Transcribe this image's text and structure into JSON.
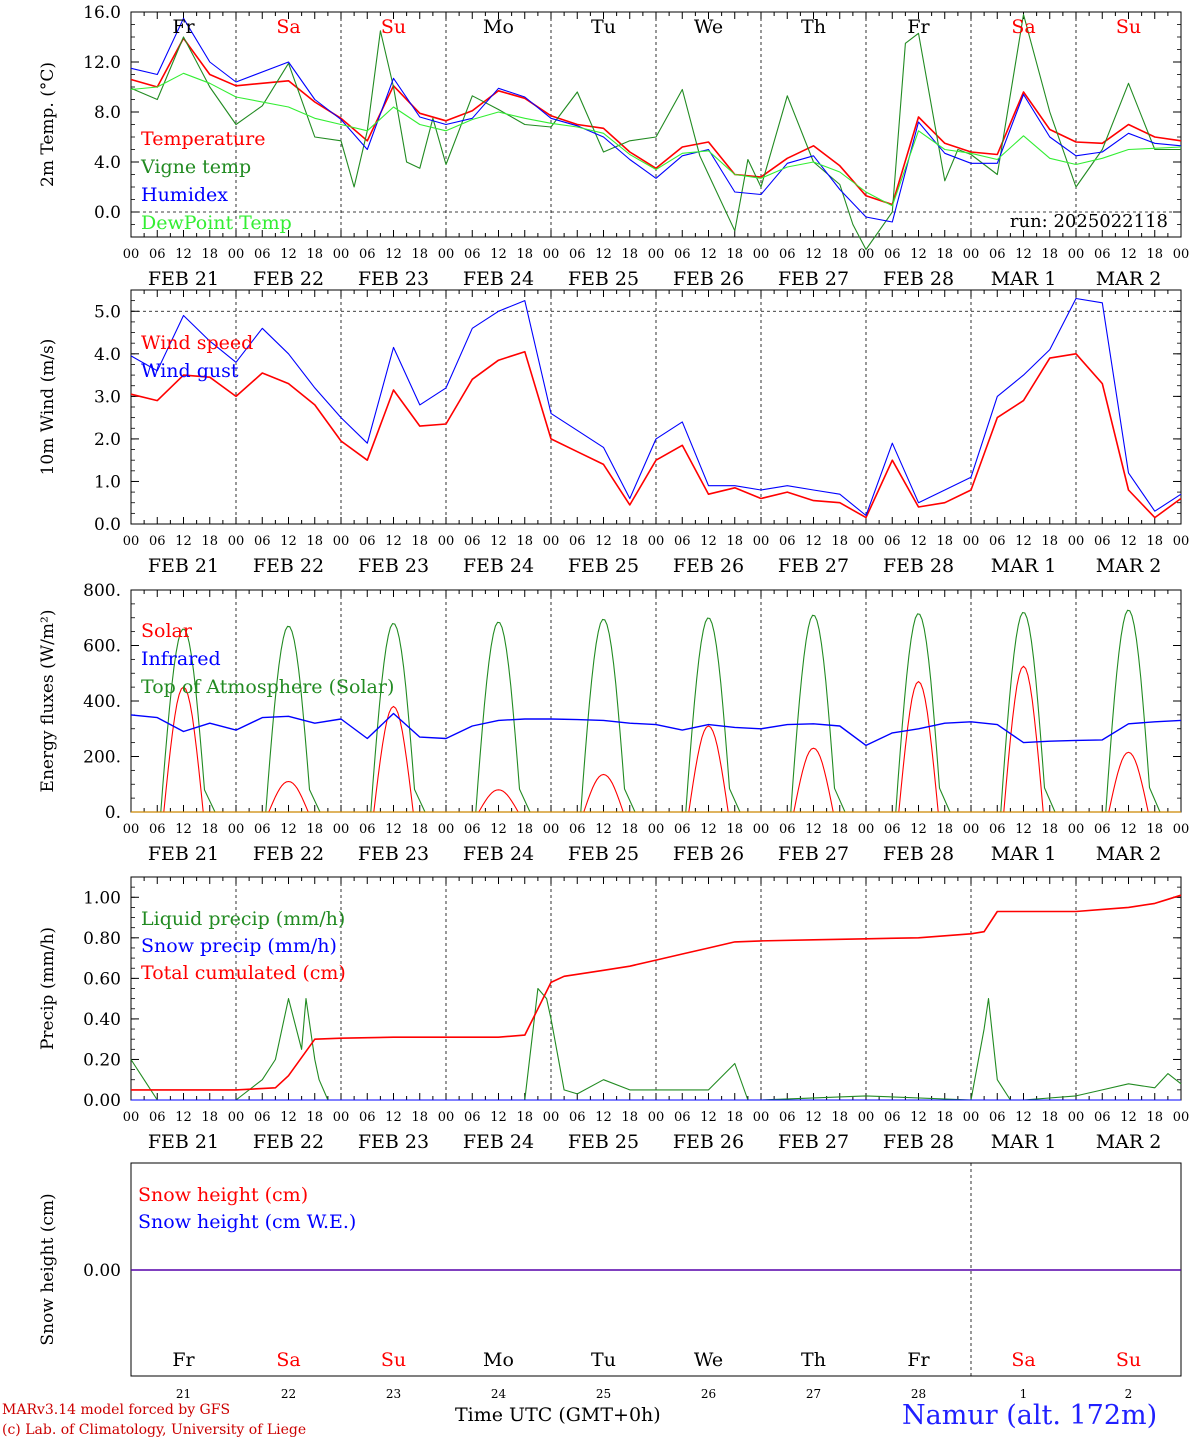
{
  "run_label": "run: 2025022118",
  "footer": {
    "model_line": "MARv3.14 model forced by GFS",
    "credit_line": "(c) Lab. of Climatology, University of Liege",
    "time_axis_label": "Time UTC (GMT+0h)",
    "station": "Namur (alt. 172m)"
  },
  "days": [
    {
      "dow": "Fr",
      "date": "FEB 21",
      "num": "21",
      "weekend": false
    },
    {
      "dow": "Sa",
      "date": "FEB 22",
      "num": "22",
      "weekend": true
    },
    {
      "dow": "Su",
      "date": "FEB 23",
      "num": "23",
      "weekend": true
    },
    {
      "dow": "Mo",
      "date": "FEB 24",
      "num": "24",
      "weekend": false
    },
    {
      "dow": "Tu",
      "date": "FEB 25",
      "num": "25",
      "weekend": false
    },
    {
      "dow": "We",
      "date": "FEB 26",
      "num": "26",
      "weekend": false
    },
    {
      "dow": "Th",
      "date": "FEB 27",
      "num": "27",
      "weekend": false
    },
    {
      "dow": "Fr",
      "date": "FEB 28",
      "num": "28",
      "weekend": false
    },
    {
      "dow": "Sa",
      "date": "MAR 1",
      "num": "1",
      "weekend": true
    },
    {
      "dow": "Su",
      "date": "MAR 2",
      "num": "2",
      "weekend": true
    }
  ],
  "hour_labels": [
    "00",
    "06",
    "12",
    "18"
  ],
  "colors": {
    "red": "#ff0000",
    "green": "#228b22",
    "blue": "#0000ff",
    "lightgreen": "#33ee33",
    "label_blue": "#2020ff"
  },
  "chart_data": [
    {
      "id": "temp",
      "type": "line",
      "ylabel": "2m Temp. (°C)",
      "ylim": [
        -2,
        16
      ],
      "yticks": [
        0,
        4,
        8,
        12,
        16
      ],
      "ytick_labels": [
        "0.0",
        "4.0",
        "8.0",
        "12.0",
        "16.0"
      ],
      "ref_lines": [
        0
      ],
      "x_unit": "hours since FEB 21 00 UTC",
      "series": [
        {
          "name": "Temperature",
          "color": "red",
          "x": [
            0,
            6,
            12,
            18,
            24,
            36,
            42,
            48,
            54,
            60,
            66,
            72,
            78,
            84,
            90,
            96,
            102,
            108,
            114,
            120,
            126,
            132,
            138,
            144,
            150,
            156,
            162,
            168,
            174,
            180,
            186,
            192,
            198,
            204,
            210,
            216,
            222,
            228,
            234,
            240
          ],
          "values": [
            10.6,
            10.0,
            13.9,
            11.0,
            10.1,
            10.5,
            8.8,
            7.5,
            5.7,
            10.1,
            7.9,
            7.3,
            8.1,
            9.7,
            9.1,
            7.7,
            7.0,
            6.7,
            4.8,
            3.5,
            5.2,
            5.6,
            3.0,
            2.8,
            4.3,
            5.3,
            3.7,
            1.3,
            0.6,
            7.6,
            5.5,
            4.8,
            4.6,
            9.6,
            6.6,
            5.6,
            5.5,
            7.0,
            6.0,
            5.7
          ]
        },
        {
          "name": "Vigne temp",
          "color": "green",
          "x": [
            0,
            6,
            12,
            18,
            24,
            30,
            36,
            42,
            48,
            51,
            54,
            57,
            60,
            63,
            66,
            69,
            72,
            78,
            84,
            90,
            96,
            102,
            108,
            114,
            120,
            126,
            130,
            132,
            138,
            141,
            144,
            150,
            156,
            162,
            165,
            168,
            174,
            177,
            180,
            186,
            189,
            192,
            198,
            204,
            210,
            216,
            222,
            228,
            234,
            240
          ],
          "values": [
            9.9,
            9.0,
            14.0,
            10.0,
            7.0,
            8.5,
            11.9,
            6.0,
            5.7,
            2.0,
            6.5,
            14.5,
            10.0,
            4.0,
            3.5,
            7.5,
            3.8,
            9.3,
            8.2,
            7.0,
            6.8,
            9.6,
            4.8,
            5.7,
            6.0,
            9.8,
            4.5,
            3.0,
            -1.5,
            4.2,
            2.0,
            9.3,
            4.0,
            2.2,
            -1.0,
            -3.0,
            0.0,
            13.5,
            14.3,
            2.5,
            5.0,
            4.6,
            3.0,
            15.8,
            8.0,
            2.0,
            5.0,
            10.3,
            5.0,
            5.0
          ]
        },
        {
          "name": "Humidex",
          "color": "blue",
          "x": [
            0,
            6,
            12,
            18,
            24,
            36,
            42,
            48,
            54,
            60,
            66,
            72,
            78,
            84,
            90,
            96,
            102,
            108,
            114,
            120,
            126,
            132,
            138,
            144,
            150,
            156,
            162,
            168,
            174,
            180,
            186,
            192,
            198,
            204,
            210,
            216,
            222,
            228,
            234,
            240
          ],
          "values": [
            11.5,
            11.0,
            15.5,
            12.0,
            10.4,
            12.0,
            9.0,
            7.4,
            5.0,
            10.7,
            7.6,
            7.0,
            7.5,
            9.9,
            9.2,
            7.5,
            6.9,
            6.0,
            4.2,
            2.7,
            4.5,
            5.0,
            1.6,
            1.4,
            3.9,
            4.5,
            1.8,
            -0.4,
            -0.8,
            7.2,
            4.7,
            3.9,
            3.9,
            9.4,
            6.0,
            4.5,
            4.8,
            6.3,
            5.5,
            5.3
          ]
        },
        {
          "name": "DewPoint Temp",
          "color": "lightgreen",
          "x": [
            0,
            6,
            12,
            18,
            24,
            36,
            42,
            48,
            54,
            60,
            66,
            72,
            78,
            84,
            90,
            96,
            102,
            108,
            114,
            120,
            126,
            132,
            138,
            144,
            150,
            156,
            162,
            168,
            174,
            180,
            186,
            192,
            198,
            204,
            210,
            216,
            222,
            228,
            234,
            240
          ],
          "values": [
            9.8,
            10.0,
            11.1,
            10.3,
            9.2,
            8.4,
            7.5,
            7.0,
            6.5,
            8.4,
            7.0,
            6.5,
            7.4,
            8.0,
            7.5,
            7.1,
            6.8,
            6.3,
            4.6,
            3.4,
            4.7,
            4.9,
            3.0,
            2.7,
            3.6,
            4.0,
            3.2,
            1.6,
            0.5,
            6.5,
            5.0,
            4.7,
            4.2,
            6.1,
            4.3,
            3.8,
            4.3,
            5.0,
            5.1,
            5.2
          ]
        }
      ]
    },
    {
      "id": "wind",
      "type": "line",
      "ylabel": "10m Wind (m/s)",
      "ylim": [
        0,
        5.5
      ],
      "yticks": [
        0,
        1,
        2,
        3,
        4,
        5
      ],
      "ytick_labels": [
        "0.0",
        "1.0",
        "2.0",
        "3.0",
        "4.0",
        "5.0"
      ],
      "ref_lines": [
        5
      ],
      "x_unit": "hours since FEB 21 00 UTC",
      "series": [
        {
          "name": "Wind speed",
          "color": "red",
          "x": [
            0,
            6,
            12,
            18,
            24,
            30,
            36,
            42,
            48,
            54,
            60,
            66,
            72,
            78,
            84,
            90,
            96,
            102,
            108,
            114,
            120,
            126,
            132,
            138,
            144,
            150,
            156,
            162,
            168,
            174,
            180,
            186,
            192,
            198,
            204,
            210,
            216,
            222,
            228,
            234,
            240
          ],
          "values": [
            3.05,
            2.9,
            3.5,
            3.45,
            3.0,
            3.55,
            3.3,
            2.8,
            1.95,
            1.5,
            3.15,
            2.3,
            2.35,
            3.4,
            3.85,
            4.05,
            2.0,
            1.7,
            1.4,
            0.45,
            1.5,
            1.85,
            0.7,
            0.85,
            0.6,
            0.75,
            0.55,
            0.5,
            0.15,
            1.5,
            0.4,
            0.5,
            0.8,
            2.5,
            2.9,
            3.9,
            4.0,
            3.3,
            0.8,
            0.15,
            0.6
          ]
        },
        {
          "name": "Wind gust",
          "color": "blue",
          "x": [
            0,
            6,
            12,
            18,
            24,
            30,
            36,
            42,
            48,
            54,
            60,
            66,
            72,
            78,
            84,
            90,
            96,
            102,
            108,
            114,
            120,
            126,
            132,
            138,
            144,
            150,
            156,
            162,
            168,
            174,
            180,
            186,
            192,
            198,
            204,
            210,
            216,
            222,
            228,
            234,
            240
          ],
          "values": [
            3.95,
            3.6,
            4.9,
            4.3,
            3.8,
            4.6,
            4.0,
            3.2,
            2.5,
            1.9,
            4.15,
            2.8,
            3.2,
            4.6,
            5.0,
            5.25,
            2.6,
            2.2,
            1.8,
            0.6,
            2.0,
            2.4,
            0.9,
            0.9,
            0.8,
            0.9,
            0.8,
            0.7,
            0.2,
            1.9,
            0.5,
            0.8,
            1.1,
            3.0,
            3.5,
            4.1,
            5.3,
            5.2,
            1.2,
            0.3,
            0.7
          ]
        }
      ]
    },
    {
      "id": "energy",
      "type": "line",
      "ylabel": "Energy fluxes (W/m²)",
      "ylim": [
        0,
        800
      ],
      "yticks": [
        0,
        200,
        400,
        600,
        800
      ],
      "ytick_labels": [
        "0.",
        "200.",
        "400.",
        "600.",
        "800."
      ],
      "ref_lines": [],
      "x_unit": "hours since FEB 21 00 UTC",
      "solar_peaks": [
        450,
        110,
        380,
        80,
        135,
        310,
        230,
        470,
        525,
        215
      ],
      "toa_peaks": [
        660,
        670,
        680,
        685,
        695,
        700,
        710,
        715,
        720,
        728
      ],
      "series": [
        {
          "name": "Solar",
          "color": "red",
          "x": [],
          "values": []
        },
        {
          "name": "Infrared",
          "color": "blue",
          "x": [
            0,
            6,
            12,
            18,
            24,
            30,
            36,
            42,
            48,
            54,
            60,
            66,
            72,
            78,
            84,
            90,
            96,
            102,
            108,
            114,
            120,
            126,
            132,
            138,
            144,
            150,
            156,
            162,
            168,
            174,
            180,
            186,
            192,
            198,
            204,
            210,
            216,
            222,
            228,
            234,
            240
          ],
          "values": [
            350,
            340,
            290,
            320,
            295,
            340,
            345,
            320,
            335,
            265,
            355,
            270,
            265,
            310,
            330,
            335,
            335,
            333,
            330,
            320,
            315,
            295,
            315,
            305,
            300,
            315,
            318,
            310,
            240,
            285,
            300,
            320,
            325,
            315,
            250,
            255,
            258,
            260,
            318,
            325,
            330
          ]
        },
        {
          "name": "Top of Atmosphere (Solar)",
          "color": "green",
          "x": [],
          "values": []
        }
      ]
    },
    {
      "id": "precip",
      "type": "line",
      "ylabel": "Precip (mm/h)",
      "ylim": [
        0,
        1.1
      ],
      "yticks": [
        0,
        0.2,
        0.4,
        0.6,
        0.8,
        1.0
      ],
      "ytick_labels": [
        "0.00",
        "0.20",
        "0.40",
        "0.60",
        "0.80",
        "1.00"
      ],
      "ref_lines": [],
      "x_unit": "hours since FEB 21 00 UTC",
      "series": [
        {
          "name": "Liquid precip (mm/h)",
          "color": "green",
          "x": [
            0,
            3,
            6,
            24,
            30,
            33,
            36,
            39,
            40,
            42,
            43,
            45,
            48,
            90,
            93,
            95,
            96,
            99,
            102,
            108,
            114,
            120,
            126,
            132,
            138,
            141,
            144,
            168,
            192,
            195,
            196,
            198,
            201,
            204,
            216,
            222,
            228,
            234,
            237,
            240
          ],
          "values": [
            0.2,
            0.1,
            0.0,
            0.0,
            0.1,
            0.2,
            0.5,
            0.25,
            0.5,
            0.2,
            0.1,
            0.0,
            0.0,
            0.0,
            0.55,
            0.5,
            0.4,
            0.05,
            0.03,
            0.1,
            0.05,
            0.05,
            0.05,
            0.05,
            0.18,
            0.0,
            0.0,
            0.02,
            0.0,
            0.35,
            0.5,
            0.1,
            0.0,
            0.0,
            0.02,
            0.05,
            0.08,
            0.06,
            0.13,
            0.08
          ]
        },
        {
          "name": "Snow precip (mm/h)",
          "color": "blue",
          "x": [
            0,
            240
          ],
          "values": [
            0,
            0
          ]
        },
        {
          "name": "Total cumulated (cm)",
          "color": "red",
          "x": [
            0,
            24,
            33,
            36,
            42,
            48,
            60,
            72,
            84,
            90,
            93,
            96,
            99,
            102,
            108,
            114,
            120,
            126,
            132,
            138,
            144,
            156,
            168,
            180,
            192,
            195,
            198,
            204,
            216,
            222,
            228,
            234,
            237,
            240
          ],
          "values": [
            0.05,
            0.05,
            0.06,
            0.12,
            0.3,
            0.305,
            0.31,
            0.31,
            0.31,
            0.32,
            0.45,
            0.58,
            0.61,
            0.62,
            0.64,
            0.66,
            0.69,
            0.72,
            0.75,
            0.78,
            0.785,
            0.79,
            0.795,
            0.8,
            0.82,
            0.83,
            0.93,
            0.93,
            0.93,
            0.94,
            0.95,
            0.97,
            0.99,
            1.01
          ]
        }
      ]
    },
    {
      "id": "snow",
      "type": "line",
      "ylabel": "Snow height (cm)",
      "yticks": [
        0
      ],
      "ytick_labels": [
        "0.00"
      ],
      "ref_lines": [],
      "x_unit": "hours since FEB 21 00 UTC",
      "series": [
        {
          "name": "Snow height (cm)",
          "color": "red",
          "x": [
            0,
            240
          ],
          "values": [
            0,
            0
          ]
        },
        {
          "name": "Snow height (cm W.E.)",
          "color": "blue",
          "x": [
            0,
            240
          ],
          "values": [
            0,
            0
          ]
        }
      ]
    }
  ]
}
